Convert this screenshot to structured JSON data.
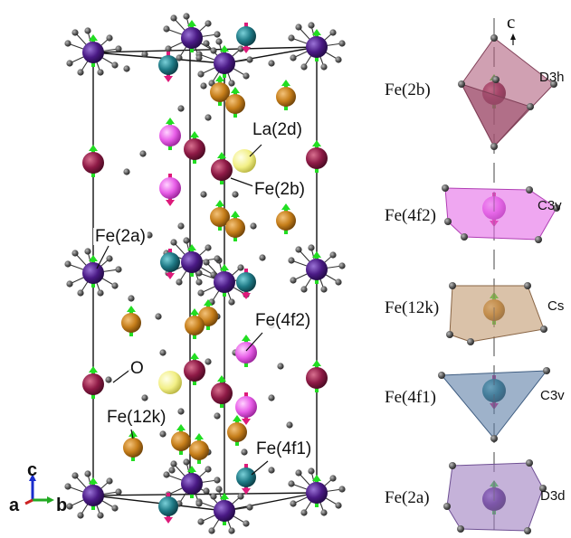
{
  "colors": {
    "fe2a": "#4a1a85",
    "fe2b": "#8e1a46",
    "fe4f1": "#1f7a86",
    "fe4f2": "#e85ee8",
    "fe12k": "#c67e1a",
    "la": "#f2ef86",
    "oxygen": "#555555",
    "spin_up": "#22dd22",
    "spin_down": "#dd1a7a"
  },
  "structure_labels": {
    "la_2d": "La(2d)",
    "fe_2b": "Fe(2b)",
    "fe_2a": "Fe(2a)",
    "fe_4f2": "Fe(4f2)",
    "o": "O",
    "fe_12k": "Fe(12k)",
    "fe_4f1": "Fe(4f1)"
  },
  "axes": {
    "a": "a",
    "b": "b",
    "c": "c"
  },
  "polyhedra_column": {
    "c_axis_label": "c",
    "entries": [
      {
        "site": "Fe(2b)",
        "symmetry": "D3h"
      },
      {
        "site": "Fe(4f2)",
        "symmetry": "C3v"
      },
      {
        "site": "Fe(12k)",
        "symmetry": "Cs"
      },
      {
        "site": "Fe(4f1)",
        "symmetry": "C3v"
      },
      {
        "site": "Fe(2a)",
        "symmetry": "D3d"
      }
    ]
  }
}
